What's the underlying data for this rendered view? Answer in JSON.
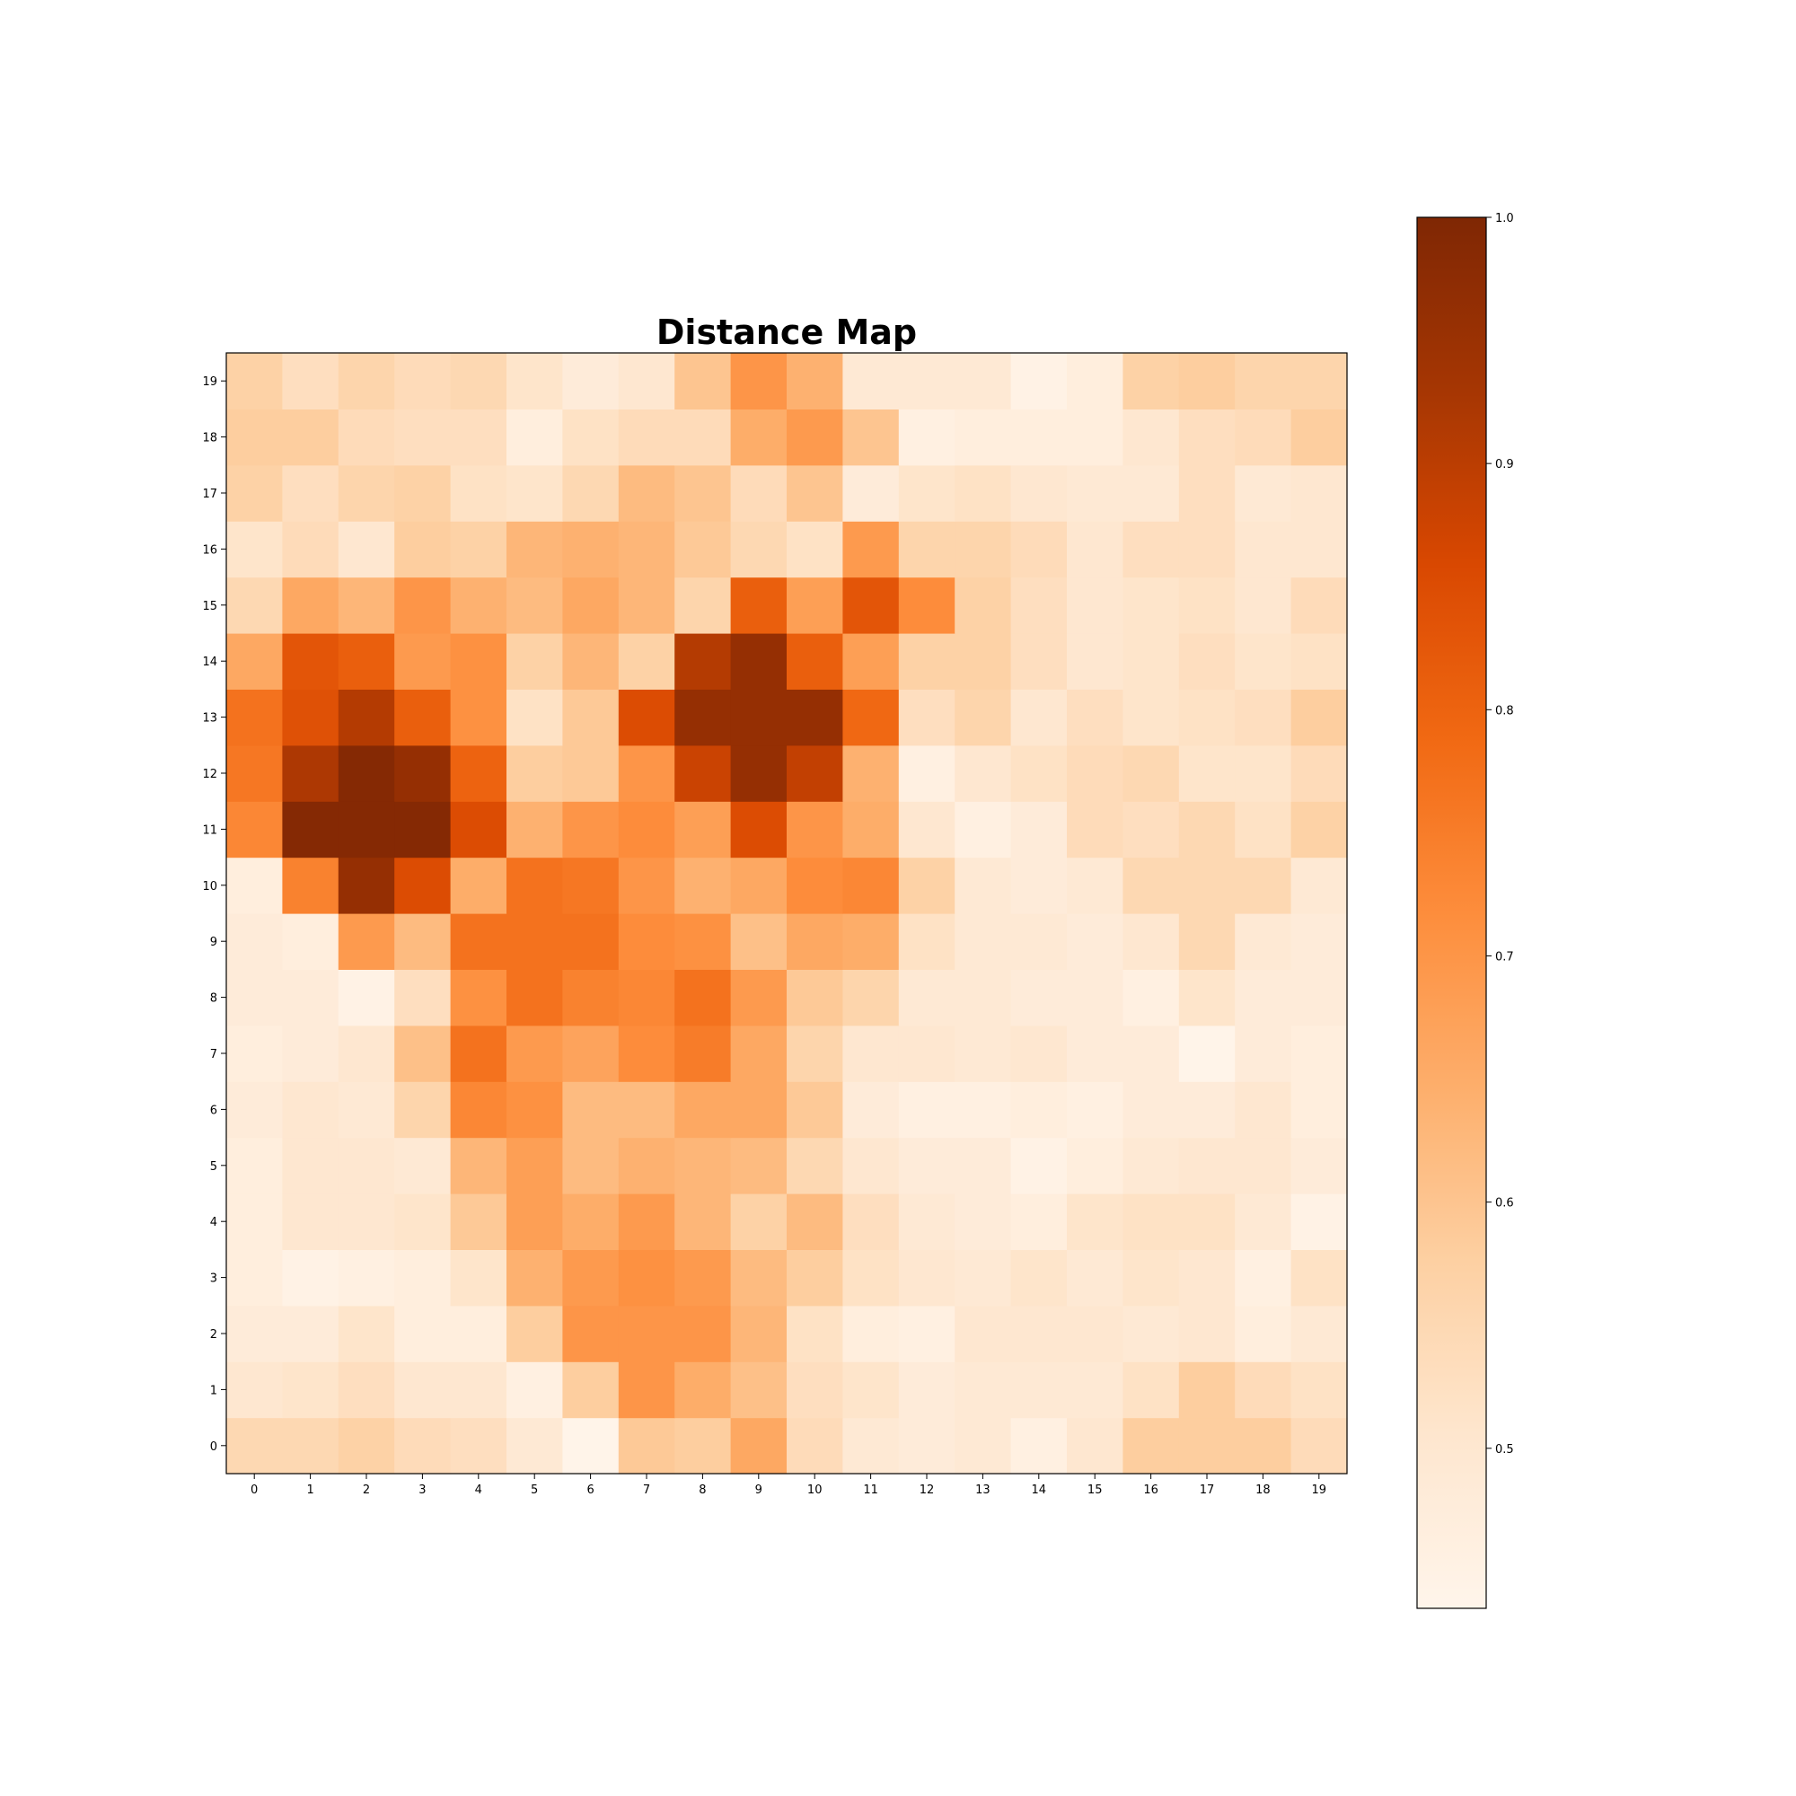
{
  "chart_data": {
    "type": "heatmap",
    "title": "Distance Map",
    "xlabel": "",
    "ylabel": "",
    "colormap": "Oranges",
    "color_low": "#fff5eb",
    "color_high": "#7f2704",
    "x_categories": [
      "0",
      "1",
      "2",
      "3",
      "4",
      "5",
      "6",
      "7",
      "8",
      "9",
      "10",
      "11",
      "12",
      "13",
      "14",
      "15",
      "16",
      "17",
      "18",
      "19"
    ],
    "y_categories": [
      "0",
      "1",
      "2",
      "3",
      "4",
      "5",
      "6",
      "7",
      "8",
      "9",
      "10",
      "11",
      "12",
      "13",
      "14",
      "15",
      "16",
      "17",
      "18",
      "19"
    ],
    "y_origin": "bottom",
    "colorbar": {
      "range": [
        0.435,
        1.0
      ],
      "ticks": [
        0.5,
        0.6,
        0.7,
        0.8,
        0.9,
        1.0
      ],
      "tick_labels": [
        "0.5",
        "0.6",
        "0.7",
        "0.8",
        "0.9",
        "1.0"
      ],
      "position": "right"
    },
    "rows_comment_order": "row index = y value, starting at y=0",
    "values": [
      [
        0.55,
        0.55,
        0.57,
        0.54,
        0.53,
        0.49,
        0.44,
        0.59,
        0.58,
        0.66,
        0.54,
        0.49,
        0.48,
        0.49,
        0.46,
        0.5,
        0.58,
        0.58,
        0.58,
        0.54
      ],
      [
        0.5,
        0.51,
        0.53,
        0.5,
        0.5,
        0.46,
        0.58,
        0.7,
        0.65,
        0.61,
        0.53,
        0.51,
        0.48,
        0.49,
        0.49,
        0.49,
        0.52,
        0.58,
        0.54,
        0.52
      ],
      [
        0.48,
        0.48,
        0.51,
        0.47,
        0.47,
        0.58,
        0.7,
        0.7,
        0.7,
        0.63,
        0.52,
        0.47,
        0.46,
        0.5,
        0.5,
        0.5,
        0.49,
        0.5,
        0.47,
        0.49
      ],
      [
        0.47,
        0.45,
        0.46,
        0.47,
        0.51,
        0.64,
        0.69,
        0.71,
        0.69,
        0.62,
        0.58,
        0.52,
        0.5,
        0.49,
        0.51,
        0.49,
        0.51,
        0.5,
        0.46,
        0.52
      ],
      [
        0.47,
        0.5,
        0.5,
        0.51,
        0.59,
        0.68,
        0.65,
        0.69,
        0.63,
        0.57,
        0.62,
        0.53,
        0.49,
        0.48,
        0.47,
        0.51,
        0.52,
        0.52,
        0.49,
        0.45
      ],
      [
        0.47,
        0.5,
        0.5,
        0.49,
        0.63,
        0.68,
        0.62,
        0.64,
        0.63,
        0.62,
        0.55,
        0.5,
        0.48,
        0.48,
        0.45,
        0.47,
        0.49,
        0.5,
        0.5,
        0.48
      ],
      [
        0.48,
        0.5,
        0.49,
        0.56,
        0.73,
        0.71,
        0.62,
        0.62,
        0.66,
        0.66,
        0.59,
        0.48,
        0.46,
        0.46,
        0.47,
        0.46,
        0.48,
        0.48,
        0.5,
        0.47
      ],
      [
        0.47,
        0.48,
        0.5,
        0.61,
        0.77,
        0.69,
        0.67,
        0.72,
        0.75,
        0.66,
        0.56,
        0.5,
        0.5,
        0.49,
        0.5,
        0.48,
        0.48,
        0.44,
        0.48,
        0.47
      ],
      [
        0.48,
        0.48,
        0.45,
        0.53,
        0.71,
        0.77,
        0.74,
        0.73,
        0.77,
        0.69,
        0.59,
        0.56,
        0.49,
        0.49,
        0.48,
        0.48,
        0.46,
        0.51,
        0.48,
        0.48
      ],
      [
        0.48,
        0.47,
        0.69,
        0.62,
        0.77,
        0.77,
        0.77,
        0.72,
        0.71,
        0.61,
        0.66,
        0.65,
        0.52,
        0.49,
        0.49,
        0.48,
        0.5,
        0.55,
        0.49,
        0.48
      ],
      [
        0.47,
        0.74,
        0.96,
        0.85,
        0.65,
        0.77,
        0.76,
        0.7,
        0.64,
        0.66,
        0.72,
        0.73,
        0.57,
        0.49,
        0.48,
        0.49,
        0.55,
        0.55,
        0.55,
        0.49
      ],
      [
        0.73,
        0.99,
        0.99,
        0.99,
        0.85,
        0.64,
        0.7,
        0.72,
        0.68,
        0.85,
        0.7,
        0.65,
        0.5,
        0.46,
        0.48,
        0.54,
        0.53,
        0.55,
        0.52,
        0.57
      ],
      [
        0.76,
        0.92,
        0.99,
        0.96,
        0.8,
        0.58,
        0.59,
        0.7,
        0.88,
        0.96,
        0.89,
        0.64,
        0.46,
        0.5,
        0.52,
        0.54,
        0.55,
        0.51,
        0.51,
        0.54
      ],
      [
        0.77,
        0.84,
        0.91,
        0.81,
        0.71,
        0.52,
        0.59,
        0.85,
        0.96,
        0.96,
        0.96,
        0.79,
        0.53,
        0.56,
        0.5,
        0.53,
        0.51,
        0.52,
        0.53,
        0.58
      ],
      [
        0.66,
        0.83,
        0.81,
        0.69,
        0.71,
        0.57,
        0.63,
        0.57,
        0.91,
        0.96,
        0.81,
        0.68,
        0.57,
        0.57,
        0.53,
        0.5,
        0.51,
        0.53,
        0.51,
        0.52
      ],
      [
        0.55,
        0.66,
        0.63,
        0.7,
        0.64,
        0.62,
        0.66,
        0.63,
        0.56,
        0.81,
        0.68,
        0.83,
        0.72,
        0.57,
        0.53,
        0.5,
        0.51,
        0.52,
        0.5,
        0.54
      ],
      [
        0.51,
        0.54,
        0.5,
        0.58,
        0.57,
        0.63,
        0.64,
        0.63,
        0.59,
        0.55,
        0.52,
        0.69,
        0.56,
        0.56,
        0.54,
        0.5,
        0.53,
        0.53,
        0.5,
        0.5
      ],
      [
        0.57,
        0.53,
        0.56,
        0.57,
        0.52,
        0.51,
        0.55,
        0.62,
        0.6,
        0.54,
        0.6,
        0.48,
        0.51,
        0.52,
        0.5,
        0.49,
        0.49,
        0.53,
        0.49,
        0.5
      ],
      [
        0.58,
        0.58,
        0.54,
        0.53,
        0.53,
        0.47,
        0.52,
        0.54,
        0.54,
        0.65,
        0.69,
        0.6,
        0.46,
        0.47,
        0.47,
        0.47,
        0.5,
        0.53,
        0.54,
        0.58
      ],
      [
        0.57,
        0.53,
        0.56,
        0.54,
        0.55,
        0.51,
        0.48,
        0.5,
        0.6,
        0.7,
        0.64,
        0.49,
        0.49,
        0.49,
        0.45,
        0.47,
        0.57,
        0.58,
        0.56,
        0.56
      ]
    ]
  }
}
